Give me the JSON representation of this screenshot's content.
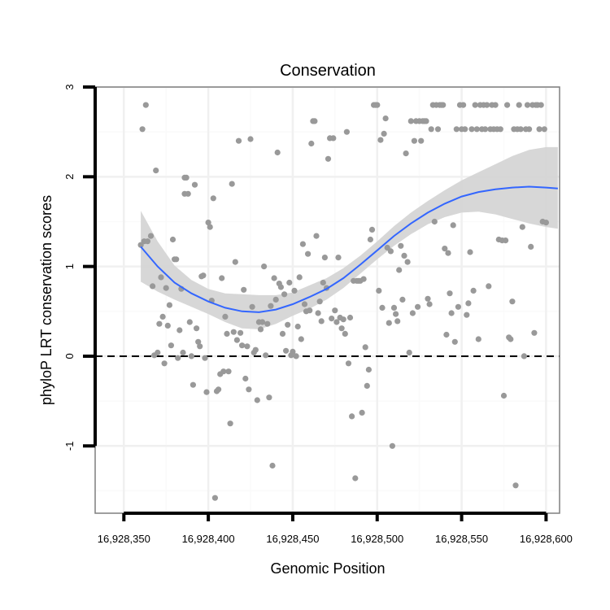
{
  "colors": {
    "background": "#ffffff",
    "panel_border": "#7f7f7f",
    "grid_major": "#f0f0f0",
    "grid_minor": "#fafafa",
    "points": "#999999",
    "smooth_line": "#3366ff",
    "ribbon": "#d3d3d3",
    "reference_line": "#000000",
    "axis_ticks": "#000000"
  },
  "chart_data": {
    "type": "scatter",
    "title": "Conservation",
    "xlabel": "Genomic Position",
    "ylabel": "phyloP LRT conservation scores",
    "xlim": [
      16928333,
      16928608
    ],
    "ylim": [
      -1.75,
      3.0
    ],
    "x_ticks": [
      16928350,
      16928400,
      16928450,
      16928500,
      16928550,
      16928600
    ],
    "x_tick_labels": [
      "16,928,350",
      "16,928,400",
      "16,928,450",
      "16,928,500",
      "16,928,550",
      "16,928,600"
    ],
    "y_ticks": [
      -1,
      0,
      1,
      2,
      3
    ],
    "y_tick_labels": [
      "-1",
      "0",
      "1",
      "2",
      "3"
    ],
    "x_minor_ticks": [
      16928375,
      16928425,
      16928475,
      16928525,
      16928575
    ],
    "y_minor_ticks": [
      -1.5,
      -0.5,
      0.5,
      1.5,
      2.5
    ],
    "reference_line": {
      "y": 0,
      "style": "dashed"
    },
    "grid": true,
    "points": [
      [
        16928360,
        1.24
      ],
      [
        16928361,
        2.53
      ],
      [
        16928362,
        1.28
      ],
      [
        16928363,
        2.8
      ],
      [
        16928364,
        1.28
      ],
      [
        16928366,
        1.34
      ],
      [
        16928367,
        0.78
      ],
      [
        16928368,
        0.01
      ],
      [
        16928369,
        2.07
      ],
      [
        16928370,
        0.04
      ],
      [
        16928371,
        0.36
      ],
      [
        16928372,
        0.88
      ],
      [
        16928373,
        0.44
      ],
      [
        16928374,
        -0.08
      ],
      [
        16928375,
        0.76
      ],
      [
        16928376,
        0.34
      ],
      [
        16928377,
        0.57
      ],
      [
        16928378,
        0.12
      ],
      [
        16928379,
        1.3
      ],
      [
        16928380,
        1.08
      ],
      [
        16928381,
        1.08
      ],
      [
        16928382,
        -0.02
      ],
      [
        16928383,
        0.29
      ],
      [
        16928384,
        0.75
      ],
      [
        16928385,
        0.04
      ],
      [
        16928386,
        1.99
      ],
      [
        16928386,
        1.81
      ],
      [
        16928387,
        1.99
      ],
      [
        16928388,
        1.81
      ],
      [
        16928389,
        0.38
      ],
      [
        16928390,
        0.0
      ],
      [
        16928391,
        -0.32
      ],
      [
        16928392,
        1.91
      ],
      [
        16928393,
        0.31
      ],
      [
        16928394,
        0.16
      ],
      [
        16928395,
        0.11
      ],
      [
        16928396,
        0.89
      ],
      [
        16928397,
        0.9
      ],
      [
        16928398,
        -0.02
      ],
      [
        16928399,
        -0.4
      ],
      [
        16928400,
        1.49
      ],
      [
        16928401,
        1.44
      ],
      [
        16928402,
        0.62
      ],
      [
        16928403,
        1.76
      ],
      [
        16928404,
        -1.58
      ],
      [
        16928405,
        -0.39
      ],
      [
        16928406,
        -0.37
      ],
      [
        16928407,
        -0.2
      ],
      [
        16928408,
        0.87
      ],
      [
        16928409,
        -0.17
      ],
      [
        16928410,
        0.44
      ],
      [
        16928411,
        0.25
      ],
      [
        16928412,
        -0.17
      ],
      [
        16928413,
        -0.75
      ],
      [
        16928414,
        1.92
      ],
      [
        16928415,
        0.27
      ],
      [
        16928416,
        1.05
      ],
      [
        16928417,
        0.18
      ],
      [
        16928418,
        2.4
      ],
      [
        16928419,
        0.26
      ],
      [
        16928420,
        0.12
      ],
      [
        16928421,
        0.74
      ],
      [
        16928422,
        -0.25
      ],
      [
        16928423,
        0.11
      ],
      [
        16928424,
        -0.37
      ],
      [
        16928425,
        2.42
      ],
      [
        16928426,
        0.55
      ],
      [
        16928427,
        0.04
      ],
      [
        16928428,
        0.07
      ],
      [
        16928429,
        -0.49
      ],
      [
        16928430,
        0.38
      ],
      [
        16928431,
        0.3
      ],
      [
        16928432,
        0.38
      ],
      [
        16928433,
        1.0
      ],
      [
        16928434,
        0.01
      ],
      [
        16928435,
        0.36
      ],
      [
        16928436,
        -0.46
      ],
      [
        16928437,
        0.56
      ],
      [
        16928438,
        -1.22
      ],
      [
        16928439,
        0.87
      ],
      [
        16928440,
        0.63
      ],
      [
        16928441,
        2.27
      ],
      [
        16928442,
        0.81
      ],
      [
        16928443,
        0.77
      ],
      [
        16928444,
        0.25
      ],
      [
        16928445,
        0.69
      ],
      [
        16928446,
        0.06
      ],
      [
        16928447,
        0.35
      ],
      [
        16928448,
        0.82
      ],
      [
        16928449,
        0.01
      ],
      [
        16928450,
        0.05
      ],
      [
        16928451,
        0.73
      ],
      [
        16928452,
        0.0
      ],
      [
        16928453,
        0.33
      ],
      [
        16928454,
        0.88
      ],
      [
        16928455,
        0.19
      ],
      [
        16928456,
        1.25
      ],
      [
        16928457,
        0.58
      ],
      [
        16928458,
        0.5
      ],
      [
        16928459,
        1.14
      ],
      [
        16928460,
        0.51
      ],
      [
        16928461,
        2.37
      ],
      [
        16928462,
        2.62
      ],
      [
        16928463,
        2.62
      ],
      [
        16928464,
        1.34
      ],
      [
        16928465,
        0.48
      ],
      [
        16928466,
        0.61
      ],
      [
        16928467,
        0.39
      ],
      [
        16928468,
        0.82
      ],
      [
        16928469,
        1.1
      ],
      [
        16928470,
        0.76
      ],
      [
        16928471,
        2.2
      ],
      [
        16928472,
        2.43
      ],
      [
        16928473,
        0.42
      ],
      [
        16928474,
        2.43
      ],
      [
        16928475,
        0.51
      ],
      [
        16928476,
        0.38
      ],
      [
        16928477,
        1.1
      ],
      [
        16928478,
        0.43
      ],
      [
        16928479,
        0.31
      ],
      [
        16928480,
        0.41
      ],
      [
        16928481,
        0.25
      ],
      [
        16928482,
        2.5
      ],
      [
        16928483,
        -0.08
      ],
      [
        16928484,
        0.43
      ],
      [
        16928485,
        -0.67
      ],
      [
        16928486,
        0.84
      ],
      [
        16928487,
        -1.36
      ],
      [
        16928488,
        0.84
      ],
      [
        16928489,
        0.84
      ],
      [
        16928490,
        0.84
      ],
      [
        16928491,
        -0.63
      ],
      [
        16928492,
        0.86
      ],
      [
        16928493,
        0.1
      ],
      [
        16928494,
        -0.33
      ],
      [
        16928495,
        -0.15
      ],
      [
        16928496,
        1.3
      ],
      [
        16928497,
        1.41
      ],
      [
        16928498,
        2.8
      ],
      [
        16928499,
        2.8
      ],
      [
        16928500,
        2.8
      ],
      [
        16928501,
        0.73
      ],
      [
        16928502,
        2.41
      ],
      [
        16928503,
        0.54
      ],
      [
        16928504,
        2.48
      ],
      [
        16928505,
        2.65
      ],
      [
        16928506,
        1.21
      ],
      [
        16928507,
        0.37
      ],
      [
        16928508,
        1.17
      ],
      [
        16928509,
        -1.0
      ],
      [
        16928510,
        0.54
      ],
      [
        16928511,
        0.47
      ],
      [
        16928512,
        0.39
      ],
      [
        16928513,
        0.96
      ],
      [
        16928514,
        1.23
      ],
      [
        16928515,
        0.63
      ],
      [
        16928516,
        1.12
      ],
      [
        16928517,
        2.26
      ],
      [
        16928518,
        1.05
      ],
      [
        16928519,
        0.04
      ],
      [
        16928520,
        2.62
      ],
      [
        16928521,
        0.48
      ],
      [
        16928522,
        2.4
      ],
      [
        16928523,
        2.62
      ],
      [
        16928524,
        0.55
      ],
      [
        16928525,
        2.62
      ],
      [
        16928526,
        2.4
      ],
      [
        16928527,
        2.62
      ],
      [
        16928528,
        2.62
      ],
      [
        16928529,
        2.62
      ],
      [
        16928530,
        0.64
      ],
      [
        16928531,
        0.58
      ],
      [
        16928532,
        2.53
      ],
      [
        16928533,
        2.8
      ],
      [
        16928534,
        1.5
      ],
      [
        16928535,
        2.8
      ],
      [
        16928536,
        2.53
      ],
      [
        16928537,
        2.8
      ],
      [
        16928538,
        2.8
      ],
      [
        16928539,
        2.8
      ],
      [
        16928540,
        1.2
      ],
      [
        16928541,
        0.24
      ],
      [
        16928542,
        1.15
      ],
      [
        16928543,
        0.7
      ],
      [
        16928544,
        0.48
      ],
      [
        16928545,
        1.46
      ],
      [
        16928546,
        0.16
      ],
      [
        16928547,
        2.53
      ],
      [
        16928548,
        0.55
      ],
      [
        16928549,
        2.8
      ],
      [
        16928550,
        2.53
      ],
      [
        16928551,
        2.8
      ],
      [
        16928552,
        2.53
      ],
      [
        16928553,
        0.46
      ],
      [
        16928554,
        0.59
      ],
      [
        16928555,
        1.16
      ],
      [
        16928556,
        2.53
      ],
      [
        16928557,
        0.73
      ],
      [
        16928558,
        2.8
      ],
      [
        16928559,
        2.53
      ],
      [
        16928560,
        0.19
      ],
      [
        16928561,
        2.8
      ],
      [
        16928562,
        2.53
      ],
      [
        16928563,
        2.8
      ],
      [
        16928564,
        2.53
      ],
      [
        16928565,
        2.8
      ],
      [
        16928566,
        0.78
      ],
      [
        16928567,
        2.53
      ],
      [
        16928568,
        2.8
      ],
      [
        16928569,
        2.53
      ],
      [
        16928570,
        2.8
      ],
      [
        16928571,
        2.53
      ],
      [
        16928572,
        1.3
      ],
      [
        16928573,
        2.53
      ],
      [
        16928574,
        1.29
      ],
      [
        16928575,
        -0.44
      ],
      [
        16928576,
        1.29
      ],
      [
        16928577,
        2.8
      ],
      [
        16928578,
        0.21
      ],
      [
        16928579,
        0.19
      ],
      [
        16928580,
        0.61
      ],
      [
        16928581,
        2.53
      ],
      [
        16928582,
        -1.44
      ],
      [
        16928583,
        2.53
      ],
      [
        16928584,
        2.8
      ],
      [
        16928585,
        2.53
      ],
      [
        16928586,
        1.44
      ],
      [
        16928587,
        0.0
      ],
      [
        16928588,
        2.53
      ],
      [
        16928589,
        2.8
      ],
      [
        16928590,
        2.53
      ],
      [
        16928591,
        1.22
      ],
      [
        16928592,
        2.8
      ],
      [
        16928593,
        0.26
      ],
      [
        16928594,
        2.8
      ],
      [
        16928595,
        2.8
      ],
      [
        16928596,
        2.53
      ],
      [
        16928597,
        2.8
      ],
      [
        16928598,
        1.5
      ],
      [
        16928599,
        2.53
      ],
      [
        16928600,
        1.49
      ]
    ],
    "smooth": {
      "x": [
        16928360,
        16928370,
        16928380,
        16928390,
        16928400,
        16928410,
        16928420,
        16928430,
        16928440,
        16928450,
        16928460,
        16928470,
        16928480,
        16928490,
        16928500,
        16928510,
        16928520,
        16928530,
        16928540,
        16928550,
        16928560,
        16928570,
        16928580,
        16928590,
        16928600,
        16928607
      ],
      "y": [
        1.22,
        1.0,
        0.82,
        0.7,
        0.61,
        0.54,
        0.5,
        0.49,
        0.52,
        0.58,
        0.66,
        0.75,
        0.87,
        1.02,
        1.18,
        1.34,
        1.48,
        1.6,
        1.7,
        1.78,
        1.83,
        1.86,
        1.88,
        1.89,
        1.88,
        1.87
      ],
      "lower": [
        0.83,
        0.72,
        0.63,
        0.55,
        0.47,
        0.38,
        0.31,
        0.3,
        0.36,
        0.45,
        0.53,
        0.63,
        0.76,
        0.92,
        1.08,
        1.23,
        1.36,
        1.47,
        1.55,
        1.6,
        1.61,
        1.58,
        1.53,
        1.48,
        1.44,
        1.42
      ],
      "upper": [
        1.62,
        1.28,
        1.01,
        0.85,
        0.75,
        0.7,
        0.69,
        0.68,
        0.68,
        0.71,
        0.79,
        0.87,
        0.98,
        1.12,
        1.28,
        1.45,
        1.6,
        1.73,
        1.85,
        1.96,
        2.05,
        2.14,
        2.23,
        2.3,
        2.33,
        2.33
      ]
    }
  }
}
